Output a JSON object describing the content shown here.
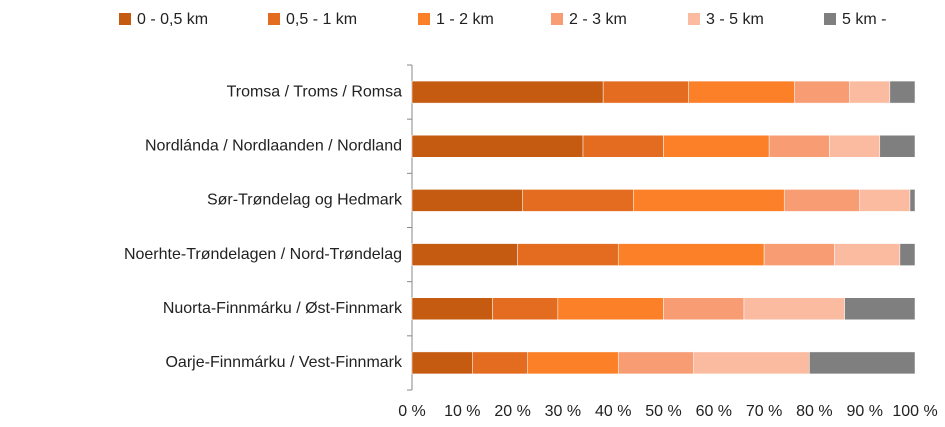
{
  "chart_data": {
    "type": "stacked_bar_horizontal",
    "categories": [
      "Tromsa / Troms / Romsa",
      "Nordlánda / Nordlaanden / Nordland",
      "Sør-Trøndelag og Hedmark",
      "Noerhte-Trøndelagen / Nord-Trøndelag",
      "Nuorta-Finnmárku / Øst-Finnmark",
      "Oarje-Finnmárku / Vest-Finnmark"
    ],
    "series": [
      {
        "name": "0 - 0,5 km",
        "color": "#c55a11",
        "values": [
          38,
          34,
          22,
          21,
          16,
          12
        ]
      },
      {
        "name": "0,5 - 1 km",
        "color": "#e36c21",
        "values": [
          17,
          16,
          22,
          20,
          13,
          11
        ]
      },
      {
        "name": "1 - 2 km",
        "color": "#fb8028",
        "values": [
          21,
          21,
          30,
          29,
          21,
          18
        ]
      },
      {
        "name": "2 - 3 km",
        "color": "#f89c74",
        "values": [
          11,
          12,
          15,
          14,
          16,
          15
        ]
      },
      {
        "name": "3 - 5 km",
        "color": "#fbbba0",
        "values": [
          8,
          10,
          10,
          13,
          20,
          23
        ]
      },
      {
        "name": "5 km -",
        "color": "#7f7f7f",
        "values": [
          5,
          7,
          1,
          3,
          14,
          21
        ]
      }
    ],
    "xlim": [
      0,
      100
    ],
    "xticks": [
      {
        "value": 0,
        "label": "0 %"
      },
      {
        "value": 10,
        "label": "10 %"
      },
      {
        "value": 20,
        "label": "20 %"
      },
      {
        "value": 30,
        "label": "30 %"
      },
      {
        "value": 40,
        "label": "40 %"
      },
      {
        "value": 50,
        "label": "50 %"
      },
      {
        "value": 60,
        "label": "60 %"
      },
      {
        "value": 70,
        "label": "70 %"
      },
      {
        "value": 80,
        "label": "80 %"
      },
      {
        "value": 90,
        "label": "90 %"
      },
      {
        "value": 100,
        "label": "100 %"
      }
    ]
  }
}
